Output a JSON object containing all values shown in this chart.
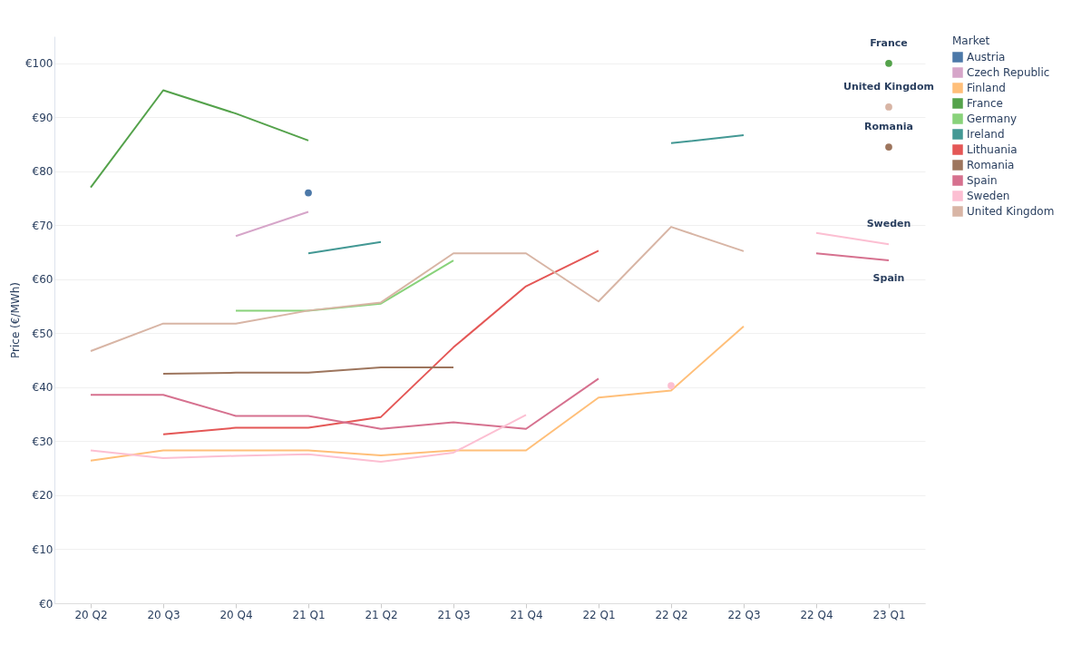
{
  "chart_data": {
    "type": "line",
    "ylabel": "Price (€/MWh)",
    "legend_title": "Market",
    "legend": "top right",
    "grid": "y",
    "marker": "none",
    "categories": [
      "20 Q2",
      "20 Q3",
      "20 Q4",
      "21 Q1",
      "21 Q2",
      "21 Q3",
      "21 Q4",
      "22 Q1",
      "22 Q2",
      "22 Q3",
      "22 Q4",
      "23 Q1"
    ],
    "ylim": [
      0,
      105
    ],
    "yticks": [
      {
        "value": 0,
        "label": "€0"
      },
      {
        "value": 10,
        "label": "€10"
      },
      {
        "value": 20,
        "label": "€20"
      },
      {
        "value": 30,
        "label": "€30"
      },
      {
        "value": 40,
        "label": "€40"
      },
      {
        "value": 50,
        "label": "€50"
      },
      {
        "value": 60,
        "label": "€60"
      },
      {
        "value": 70,
        "label": "€70"
      },
      {
        "value": 80,
        "label": "€80"
      },
      {
        "value": 90,
        "label": "€90"
      },
      {
        "value": 100,
        "label": "€100"
      }
    ],
    "series": [
      {
        "name": "Austria",
        "type": "scatter",
        "marker": "circle",
        "color": "#4c78a8",
        "values": [
          null,
          null,
          null,
          76,
          null,
          null,
          null,
          null,
          null,
          null,
          null,
          null
        ]
      },
      {
        "name": "Czech Republic",
        "color": "#d6a5c9",
        "values": [
          null,
          null,
          68,
          72.5,
          null,
          null,
          null,
          null,
          null,
          null,
          null,
          null
        ]
      },
      {
        "name": "Finland",
        "color": "#ffbf79",
        "values": [
          26.4,
          28.3,
          28.3,
          28.3,
          27.4,
          28.3,
          28.3,
          38.1,
          39.4,
          51.3,
          null,
          null
        ]
      },
      {
        "name": "France",
        "color": "#54a24b",
        "values": [
          77,
          95,
          90.7,
          85.7,
          null,
          null,
          null,
          null,
          null,
          null,
          null,
          100
        ]
      },
      {
        "name": "Germany",
        "color": "#88d27a",
        "values": [
          null,
          null,
          54.2,
          54.2,
          55.5,
          63.5,
          null,
          null,
          null,
          null,
          null,
          null
        ]
      },
      {
        "name": "Ireland",
        "color": "#439894",
        "values": [
          null,
          null,
          null,
          64.8,
          66.9,
          null,
          null,
          null,
          85.2,
          86.7,
          null,
          null
        ]
      },
      {
        "name": "Lithuania",
        "color": "#e45756",
        "values": [
          null,
          31.3,
          32.5,
          32.5,
          34.5,
          47.4,
          58.7,
          65.3,
          null,
          null,
          null,
          null
        ]
      },
      {
        "name": "Romania",
        "color": "#9d755d",
        "values": [
          null,
          42.5,
          42.7,
          42.7,
          43.7,
          43.7,
          null,
          null,
          null,
          null,
          null,
          84.5
        ]
      },
      {
        "name": "Spain",
        "color": "#d6718f",
        "values": [
          38.6,
          38.6,
          34.7,
          34.7,
          32.3,
          33.5,
          32.3,
          41.6,
          null,
          null,
          64.8,
          63.5
        ]
      },
      {
        "name": "Sweden",
        "color": "#fcbfd2",
        "values": [
          28.3,
          26.9,
          27.3,
          27.6,
          26.2,
          27.9,
          34.9,
          null,
          40.3,
          null,
          68.6,
          66.5
        ]
      },
      {
        "name": "United Kingdom",
        "color": "#d8b5a5",
        "values": [
          46.7,
          51.8,
          51.8,
          54.2,
          55.7,
          64.8,
          64.8,
          55.9,
          69.7,
          65.2,
          null,
          91.9
        ]
      }
    ],
    "annotations": [
      {
        "text": "France",
        "x": "23 Q1",
        "y": 100
      },
      {
        "text": "United Kingdom",
        "x": "23 Q1",
        "y": 91.9
      },
      {
        "text": "Romania",
        "x": "23 Q1",
        "y": 84.5
      },
      {
        "text": "Sweden",
        "x": "23 Q1",
        "y": 66.5
      },
      {
        "text": "Spain",
        "x": "23 Q1",
        "y": 63.5
      }
    ]
  }
}
